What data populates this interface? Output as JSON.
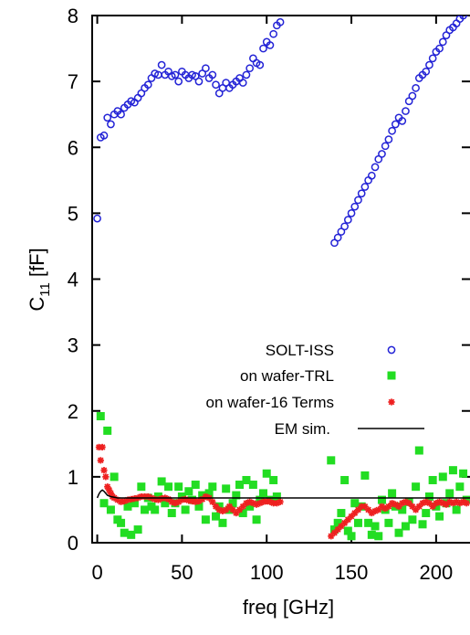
{
  "chart_data": {
    "type": "scatter",
    "xlabel": "freq [GHz]",
    "ylabel_main": "C",
    "ylabel_sub": "11",
    "ylabel_unit": " [fF]",
    "xlim": [
      -3,
      220
    ],
    "ylim": [
      0,
      8
    ],
    "xticks": [
      0,
      50,
      100,
      150,
      200
    ],
    "yticks": [
      0,
      1,
      2,
      3,
      4,
      5,
      6,
      7,
      8
    ],
    "xtick_labels": [
      "0",
      "50",
      "100",
      "150",
      "200"
    ],
    "ytick_labels": [
      "0",
      "1",
      "2",
      "3",
      "4",
      "5",
      "6",
      "7",
      "8"
    ],
    "grid": false,
    "legend_position": "center-right",
    "series": [
      {
        "name": "SOLT-ISS",
        "marker": "open-circle",
        "color": "#2323d6",
        "x": [
          0,
          2,
          4,
          6,
          8,
          10,
          12,
          14,
          16,
          18,
          20,
          22,
          24,
          26,
          28,
          30,
          32,
          34,
          36,
          38,
          40,
          42,
          44,
          46,
          48,
          50,
          52,
          54,
          56,
          58,
          60,
          62,
          64,
          66,
          68,
          70,
          72,
          74,
          76,
          78,
          80,
          82,
          84,
          86,
          88,
          90,
          92,
          94,
          96,
          98,
          100,
          102,
          104,
          106,
          108,
          140,
          142,
          144,
          146,
          148,
          150,
          152,
          154,
          156,
          158,
          160,
          162,
          164,
          166,
          168,
          170,
          172,
          174,
          176,
          178,
          180,
          182,
          184,
          186,
          188,
          190,
          192,
          194,
          196,
          198,
          200,
          202,
          204,
          206,
          208,
          210,
          212,
          214,
          216,
          218
        ],
        "y": [
          4.92,
          6.15,
          6.18,
          6.45,
          6.35,
          6.5,
          6.55,
          6.5,
          6.6,
          6.65,
          6.7,
          6.68,
          6.75,
          6.82,
          6.9,
          6.95,
          7.05,
          7.12,
          7.1,
          7.25,
          7.1,
          7.15,
          7.08,
          7.1,
          7.0,
          7.15,
          7.1,
          7.05,
          7.1,
          7.08,
          7.0,
          7.12,
          7.2,
          7.05,
          7.1,
          6.95,
          6.82,
          6.9,
          6.98,
          6.9,
          6.95,
          7.0,
          7.05,
          6.98,
          7.1,
          7.2,
          7.35,
          7.28,
          7.25,
          7.5,
          7.6,
          7.55,
          7.72,
          7.85,
          7.9,
          4.55,
          4.63,
          4.72,
          4.8,
          4.9,
          5.0,
          5.1,
          5.2,
          5.3,
          5.4,
          5.5,
          5.57,
          5.7,
          5.82,
          5.9,
          6.02,
          6.12,
          6.25,
          6.35,
          6.45,
          6.4,
          6.55,
          6.7,
          6.78,
          6.9,
          7.05,
          7.1,
          7.15,
          7.25,
          7.35,
          7.45,
          7.5,
          7.6,
          7.7,
          7.78,
          7.82,
          7.88,
          7.95,
          8.0,
          8.05
        ]
      },
      {
        "name": "on wafer-TRL",
        "marker": "filled-square",
        "color": "#22dd22",
        "x": [
          2,
          4,
          6,
          8,
          10,
          12,
          14,
          16,
          18,
          20,
          22,
          24,
          26,
          28,
          30,
          32,
          34,
          36,
          38,
          40,
          42,
          44,
          46,
          48,
          50,
          52,
          54,
          56,
          58,
          60,
          62,
          64,
          66,
          68,
          70,
          72,
          74,
          76,
          78,
          80,
          82,
          84,
          86,
          88,
          90,
          92,
          94,
          96,
          98,
          100,
          102,
          104,
          106,
          138,
          140,
          142,
          144,
          146,
          148,
          150,
          152,
          154,
          156,
          158,
          160,
          162,
          164,
          166,
          168,
          170,
          172,
          174,
          176,
          178,
          180,
          182,
          184,
          186,
          188,
          190,
          192,
          194,
          196,
          198,
          200,
          202,
          204,
          206,
          208,
          210,
          212,
          214,
          216,
          218
        ],
        "y": [
          1.92,
          0.6,
          1.7,
          0.5,
          1.0,
          0.35,
          0.3,
          0.15,
          0.55,
          0.12,
          0.6,
          0.2,
          0.85,
          0.5,
          0.68,
          0.55,
          0.5,
          0.7,
          0.93,
          0.6,
          0.85,
          0.45,
          0.6,
          0.85,
          0.7,
          0.5,
          0.78,
          0.65,
          0.88,
          0.55,
          0.72,
          0.35,
          0.75,
          0.85,
          0.4,
          0.55,
          0.3,
          0.82,
          0.5,
          0.6,
          0.72,
          0.88,
          0.45,
          0.95,
          0.55,
          0.88,
          0.35,
          0.65,
          0.75,
          1.05,
          0.65,
          0.95,
          0.7,
          1.25,
          0.2,
          0.3,
          0.45,
          0.95,
          0.18,
          0.1,
          0.6,
          0.3,
          0.55,
          1.02,
          0.3,
          0.12,
          0.25,
          0.1,
          0.65,
          0.5,
          0.3,
          0.75,
          0.55,
          0.15,
          0.5,
          0.25,
          0.62,
          0.35,
          0.85,
          1.4,
          0.28,
          0.45,
          0.7,
          0.95,
          0.55,
          0.4,
          1.0,
          0.6,
          0.75,
          1.1,
          0.5,
          0.85,
          1.05,
          0.65
        ]
      },
      {
        "name": "on wafer-16 Terms",
        "marker": "asterisk",
        "color": "#ee2020",
        "x": [
          1,
          2,
          3,
          4,
          5,
          6,
          7,
          8,
          9,
          10,
          12,
          14,
          16,
          18,
          20,
          22,
          24,
          26,
          28,
          30,
          32,
          34,
          36,
          38,
          40,
          42,
          44,
          46,
          48,
          50,
          52,
          54,
          56,
          58,
          60,
          62,
          64,
          66,
          68,
          70,
          72,
          74,
          76,
          78,
          80,
          82,
          84,
          86,
          88,
          90,
          92,
          94,
          96,
          98,
          100,
          102,
          104,
          106,
          108,
          138,
          140,
          142,
          144,
          146,
          148,
          150,
          152,
          154,
          156,
          158,
          160,
          162,
          164,
          166,
          168,
          170,
          172,
          174,
          176,
          178,
          180,
          182,
          184,
          186,
          188,
          190,
          192,
          194,
          196,
          198,
          200,
          202,
          204,
          206,
          208,
          210,
          212,
          214,
          216,
          218
        ],
        "y": [
          1.45,
          1.25,
          1.45,
          1.1,
          1.0,
          0.85,
          0.8,
          0.75,
          0.7,
          0.68,
          0.65,
          0.62,
          0.63,
          0.65,
          0.66,
          0.67,
          0.68,
          0.7,
          0.7,
          0.7,
          0.68,
          0.66,
          0.65,
          0.67,
          0.68,
          0.66,
          0.62,
          0.6,
          0.62,
          0.65,
          0.66,
          0.64,
          0.63,
          0.62,
          0.63,
          0.66,
          0.7,
          0.68,
          0.62,
          0.55,
          0.5,
          0.48,
          0.5,
          0.55,
          0.5,
          0.45,
          0.5,
          0.55,
          0.6,
          0.62,
          0.6,
          0.58,
          0.6,
          0.62,
          0.63,
          0.62,
          0.6,
          0.6,
          0.62,
          0.1,
          0.15,
          0.2,
          0.25,
          0.3,
          0.35,
          0.4,
          0.45,
          0.5,
          0.55,
          0.55,
          0.5,
          0.45,
          0.48,
          0.5,
          0.55,
          0.52,
          0.55,
          0.6,
          0.58,
          0.55,
          0.6,
          0.62,
          0.6,
          0.55,
          0.5,
          0.55,
          0.6,
          0.62,
          0.6,
          0.55,
          0.6,
          0.62,
          0.6,
          0.58,
          0.62,
          0.6,
          0.62,
          0.6,
          0.62,
          0.6
        ]
      },
      {
        "name": "EM sim.",
        "marker": "line",
        "color": "#000000",
        "x": [
          0,
          1,
          2,
          3,
          4,
          5,
          6,
          8,
          10,
          12,
          15,
          20,
          50,
          100,
          150,
          200,
          220
        ],
        "y": [
          0.68,
          0.74,
          0.78,
          0.8,
          0.78,
          0.75,
          0.72,
          0.7,
          0.69,
          0.68,
          0.68,
          0.68,
          0.68,
          0.68,
          0.68,
          0.68,
          0.68
        ]
      }
    ]
  }
}
